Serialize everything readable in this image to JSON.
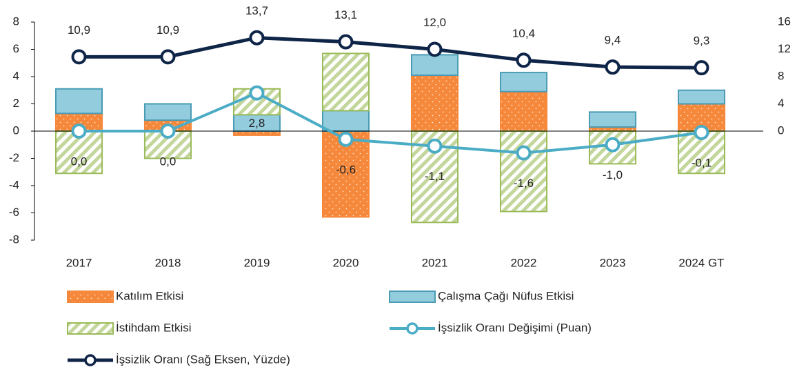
{
  "chart_data": {
    "type": "bar",
    "stacked": true,
    "categories": [
      "2017",
      "2018",
      "2019",
      "2020",
      "2021",
      "2022",
      "2023",
      "2024 GT"
    ],
    "ylim": [
      -8,
      8
    ],
    "yticks": [
      -8,
      -6,
      -4,
      -2,
      0,
      2,
      4,
      6,
      8
    ],
    "y2lim": [
      -16,
      16
    ],
    "y2ticks": [
      0,
      4,
      8,
      12,
      16
    ],
    "series": [
      {
        "name": "Katılım Etkisi",
        "color": "#f5883a",
        "values": [
          1.3,
          0.8,
          -0.3,
          -6.3,
          4.1,
          2.9,
          0.3,
          2.0
        ]
      },
      {
        "name": "Çalışma Çağı Nüfus Etkisi",
        "color": "#93cddd",
        "values": [
          1.8,
          1.2,
          1.2,
          1.5,
          1.5,
          1.4,
          1.1,
          1.0
        ]
      },
      {
        "name": "İstihdam Etkisi",
        "color": "#9bbb59",
        "values": [
          -3.1,
          -2.0,
          1.9,
          4.2,
          -6.7,
          -5.9,
          -2.4,
          -3.1
        ]
      },
      {
        "name": "İşsizlik Oranı Değişimi (Puan)",
        "type": "line",
        "color": "#4bacc6",
        "values": [
          0.0,
          0.0,
          2.8,
          -0.6,
          -1.1,
          -1.6,
          -1.0,
          -0.1
        ],
        "value_labels": [
          "0,0",
          "0,0",
          "2,8",
          "-0,6",
          "-1,1",
          "-1,6",
          "-1,0",
          "-0,1"
        ]
      },
      {
        "name": "İşsizlik Oranı (Sağ Eksen, Yüzde)",
        "type": "line",
        "axis": "y2",
        "color": "#0f2548",
        "values": [
          10.9,
          10.9,
          13.7,
          13.1,
          12.0,
          10.4,
          9.4,
          9.3
        ],
        "value_labels": [
          "10,9",
          "10,9",
          "13,7",
          "13,1",
          "12,0",
          "10,4",
          "9,4",
          "9,3"
        ]
      }
    ]
  }
}
